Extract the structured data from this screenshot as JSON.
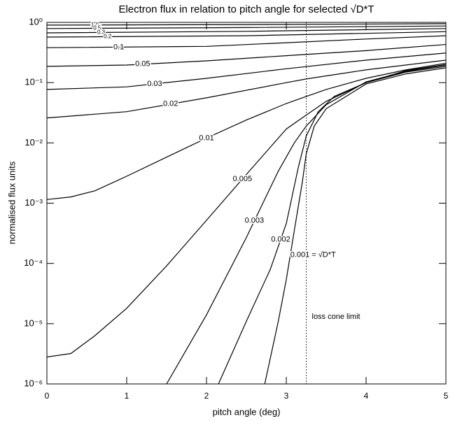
{
  "chart_data": {
    "type": "line",
    "title": "Electron flux in relation to pitch angle for selected √D*T",
    "x_label": "pitch angle (deg)",
    "y_label": "normalised flux units",
    "log_y": true,
    "color": "#000000",
    "xlim": [
      0,
      5
    ],
    "xticks": [
      0,
      1,
      2,
      3,
      4,
      5
    ],
    "ylim": [
      1e-06,
      1
    ],
    "yticks": [
      {
        "value": 1e-06,
        "label": "10⁻⁶"
      },
      {
        "value": 1e-05,
        "label": "10⁻⁵"
      },
      {
        "value": 0.0001,
        "label": "10⁻⁴"
      },
      {
        "value": 0.001,
        "label": "10⁻³"
      },
      {
        "value": 0.01,
        "label": "10⁻²"
      },
      {
        "value": 0.1,
        "label": "10⁻¹"
      },
      {
        "value": 1,
        "label": "10⁰"
      }
    ],
    "annotation": {
      "text": "loss cone limit",
      "x": 3.25
    },
    "series": [
      {
        "name": "1.0",
        "x": [
          0,
          2.5,
          5
        ],
        "values": [
          0.9,
          0.92,
          0.95
        ]
      },
      {
        "name": "0.5",
        "x": [
          0,
          2.5,
          5
        ],
        "values": [
          0.79,
          0.82,
          0.87
        ]
      },
      {
        "name": "0.3",
        "x": [
          0,
          2.5,
          5
        ],
        "values": [
          0.67,
          0.71,
          0.79
        ]
      },
      {
        "name": "0.2",
        "x": [
          0,
          2.5,
          5
        ],
        "values": [
          0.57,
          0.6,
          0.7
        ]
      },
      {
        "name": "0.1",
        "x": [
          0,
          2,
          3,
          4,
          5
        ],
        "values": [
          0.38,
          0.4,
          0.46,
          0.53,
          0.6
        ]
      },
      {
        "name": "0.05",
        "x": [
          0,
          1,
          2,
          3,
          4,
          5
        ],
        "values": [
          0.186,
          0.196,
          0.23,
          0.28,
          0.34,
          0.43
        ]
      },
      {
        "name": "0.03",
        "x": [
          0,
          1,
          2,
          3,
          4,
          5
        ],
        "values": [
          0.077,
          0.085,
          0.118,
          0.17,
          0.236,
          0.31
        ]
      },
      {
        "name": "0.02",
        "x": [
          0,
          1,
          2,
          3,
          3.25,
          4,
          5
        ],
        "values": [
          0.026,
          0.033,
          0.056,
          0.1,
          0.115,
          0.163,
          0.236
        ]
      },
      {
        "name": "0.01",
        "x": [
          0,
          0.3,
          0.6,
          1,
          1.5,
          2,
          2.5,
          3,
          3.25,
          3.5,
          4,
          4.5,
          5
        ],
        "values": [
          0.00115,
          0.00127,
          0.0016,
          0.0028,
          0.0058,
          0.012,
          0.024,
          0.045,
          0.059,
          0.077,
          0.118,
          0.163,
          0.21
        ]
      },
      {
        "name": "0.005",
        "x": [
          0,
          0.3,
          0.6,
          1,
          1.5,
          2,
          2.5,
          3,
          3.25,
          3.5,
          4,
          4.5,
          5
        ],
        "values": [
          2.8e-06,
          3.2e-06,
          6.3e-06,
          1.8e-05,
          9.1e-05,
          0.00052,
          0.003,
          0.017,
          0.029,
          0.049,
          0.1,
          0.158,
          0.2
        ]
      },
      {
        "name": "0.003",
        "x": [
          1.5,
          2,
          2.5,
          2.9,
          3.1,
          3.25,
          3.5,
          4,
          4.5,
          5
        ],
        "values": [
          1e-06,
          1.4e-05,
          0.00027,
          0.0034,
          0.01,
          0.019,
          0.043,
          0.103,
          0.154,
          0.196
        ]
      },
      {
        "name": "0.002",
        "x": [
          2.15,
          2.5,
          2.8,
          3,
          3.15,
          3.25,
          3.4,
          3.6,
          4,
          4.5,
          5
        ],
        "values": [
          1e-06,
          1.1e-05,
          8e-05,
          0.00046,
          0.0039,
          0.013,
          0.033,
          0.059,
          0.1,
          0.15,
          0.186
        ]
      },
      {
        "name": "0.001 = √D*T",
        "x": [
          2.73,
          2.9,
          3,
          3.1,
          3.2,
          3.25,
          3.35,
          3.5,
          4,
          4.5,
          5
        ],
        "values": [
          1e-06,
          1.1e-05,
          5.4e-05,
          0.00035,
          0.0022,
          0.0066,
          0.019,
          0.037,
          0.095,
          0.14,
          0.176
        ]
      }
    ]
  }
}
